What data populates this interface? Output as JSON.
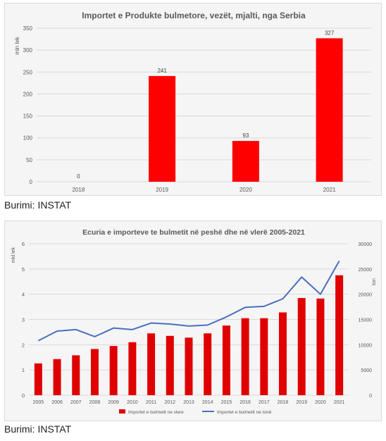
{
  "chart_data": [
    {
      "type": "bar",
      "title": "Importet e Produkte bulmetore, vezët, mjalti, nga Serbia",
      "ylabel": "mln lek",
      "categories": [
        "2018",
        "2019",
        "2020",
        "2021"
      ],
      "values": [
        0,
        241,
        93,
        327
      ],
      "data_labels": [
        "0",
        "241",
        "93",
        "327"
      ],
      "ylim": [
        0,
        350
      ],
      "yticks": [
        "0",
        "50",
        "100",
        "150",
        "200",
        "250",
        "300",
        "350"
      ],
      "bar_color": "#ff0000",
      "grid": true,
      "legend": "none"
    },
    {
      "type": "bar+line",
      "title": "Ecuria e importeve te bulmetit në peshë dhe në vlerë 2005-2021",
      "ylabel": "mld lek",
      "y2label": "ton",
      "categories": [
        "2005",
        "2006",
        "2007",
        "2008",
        "2009",
        "2010",
        "2011",
        "2012",
        "2013",
        "2014",
        "2015",
        "2016",
        "2017",
        "2018",
        "2019",
        "2020",
        "2021"
      ],
      "series": [
        {
          "name": "Importet e bulmetit ne vlere",
          "type": "bar",
          "axis": "left",
          "color": "#e00000",
          "values": [
            1.26,
            1.43,
            1.58,
            1.83,
            1.95,
            2.1,
            2.45,
            2.35,
            2.28,
            2.45,
            2.76,
            3.05,
            3.05,
            3.28,
            3.85,
            3.83,
            4.75
          ]
        },
        {
          "name": "Importet e bulmetit ne tonë",
          "type": "line",
          "axis": "right",
          "color": "#4a6fbf",
          "values": [
            10800,
            12700,
            13000,
            11600,
            13300,
            13000,
            14300,
            14100,
            13700,
            13900,
            15500,
            17400,
            17600,
            19100,
            23400,
            20000,
            26600
          ]
        }
      ],
      "ylim": [
        0,
        6
      ],
      "yticks": [
        "0",
        "1",
        "2",
        "3",
        "4",
        "5",
        "6"
      ],
      "y2lim": [
        0,
        30000
      ],
      "y2ticks": [
        "0",
        "5000",
        "10000",
        "15000",
        "20000",
        "25000",
        "30000"
      ],
      "grid": true,
      "legend": "bottom"
    }
  ],
  "sources": [
    "Burimi: INSTAT",
    "Burimi: INSTAT"
  ]
}
